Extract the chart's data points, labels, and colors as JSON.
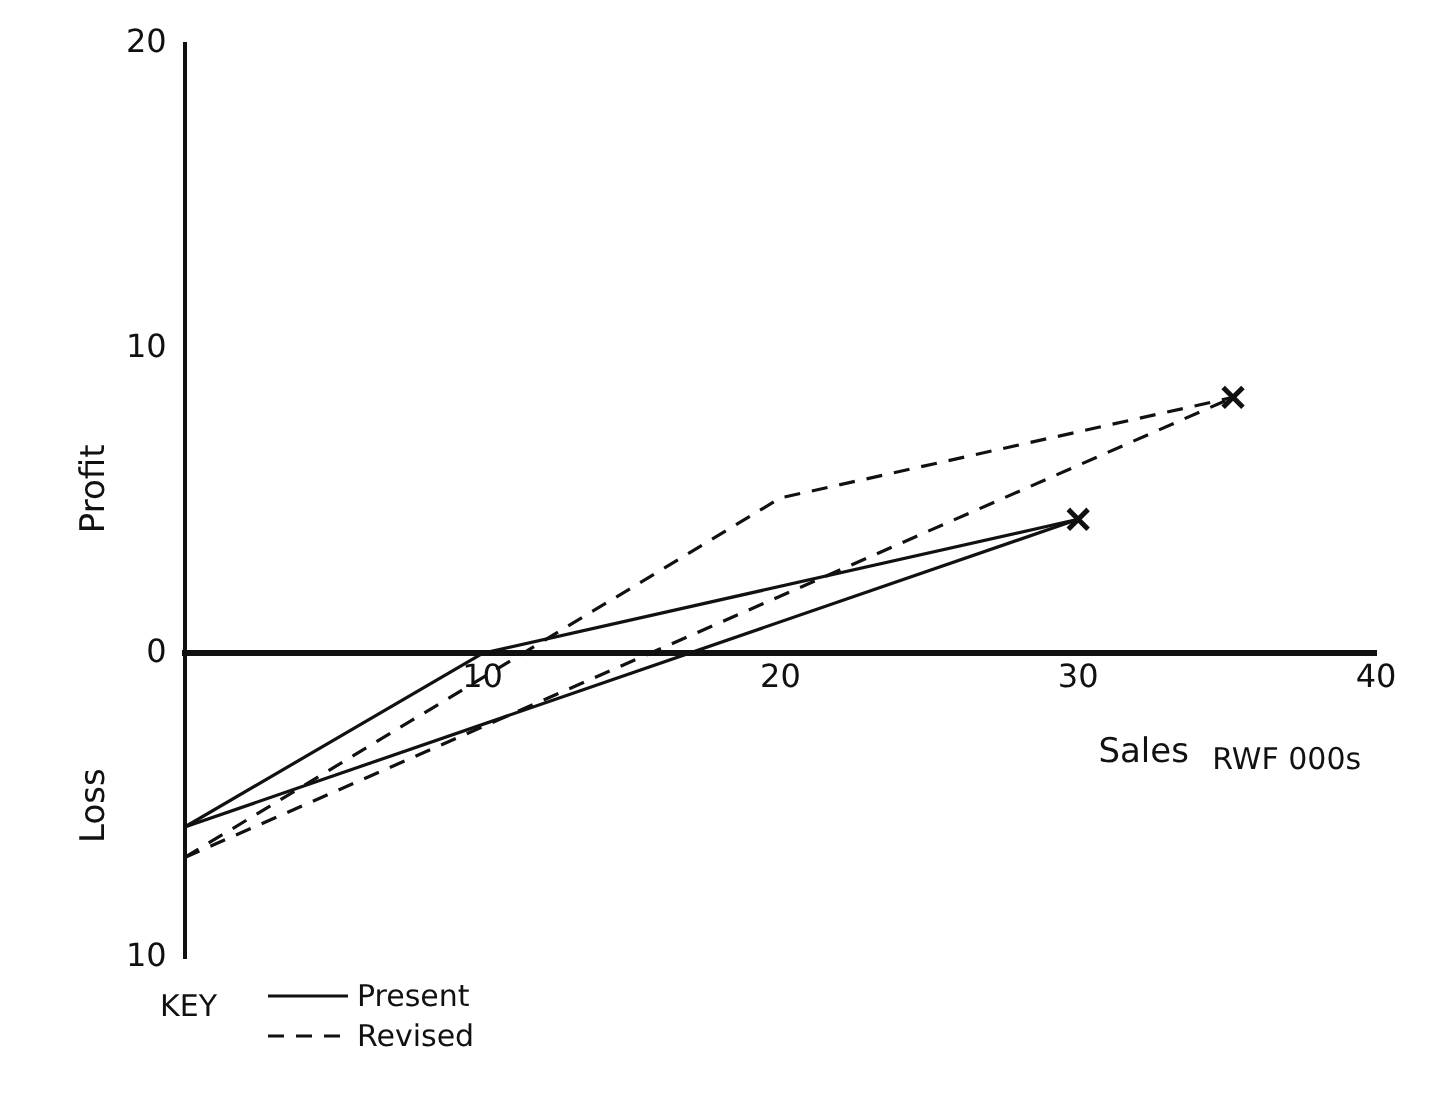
{
  "chart_data": {
    "type": "line",
    "xlabel": "Sales",
    "ylabel": "Profit",
    "legend_title": "KEY",
    "annotations": [
      "Loss",
      "RWF 000s"
    ],
    "xlim": [
      0,
      40
    ],
    "xticks": [
      10,
      20,
      30,
      40
    ],
    "ylim": [
      -10,
      20
    ],
    "yticks": [
      {
        "value": -10,
        "label": "10"
      },
      0,
      10,
      20
    ],
    "grid": false,
    "legend": "bottom left",
    "marker": "none",
    "series": [
      {
        "name": "Present",
        "color": "#111111",
        "line_style": "solid",
        "x": [
          0,
          10,
          30
        ],
        "values": [
          -5.7,
          0,
          4.4
        ]
      },
      {
        "color": "#111111",
        "line_style": "solid",
        "x": [
          0,
          30
        ],
        "values": [
          -5.7,
          4.4
        ]
      },
      {
        "name": "Revised",
        "color": "#111111",
        "line_style": "dashed",
        "x": [
          0,
          20,
          35.2
        ],
        "values": [
          -6.7,
          5.1,
          8.4
        ]
      },
      {
        "color": "#111111",
        "line_style": "dashed",
        "x": [
          0,
          35.2
        ],
        "values": [
          -6.7,
          8.4
        ]
      },
      {
        "type": "scatter",
        "marker": "cross",
        "color": "#111111",
        "x": [
          30,
          35.2
        ],
        "values": [
          4.4,
          8.4
        ]
      }
    ]
  }
}
